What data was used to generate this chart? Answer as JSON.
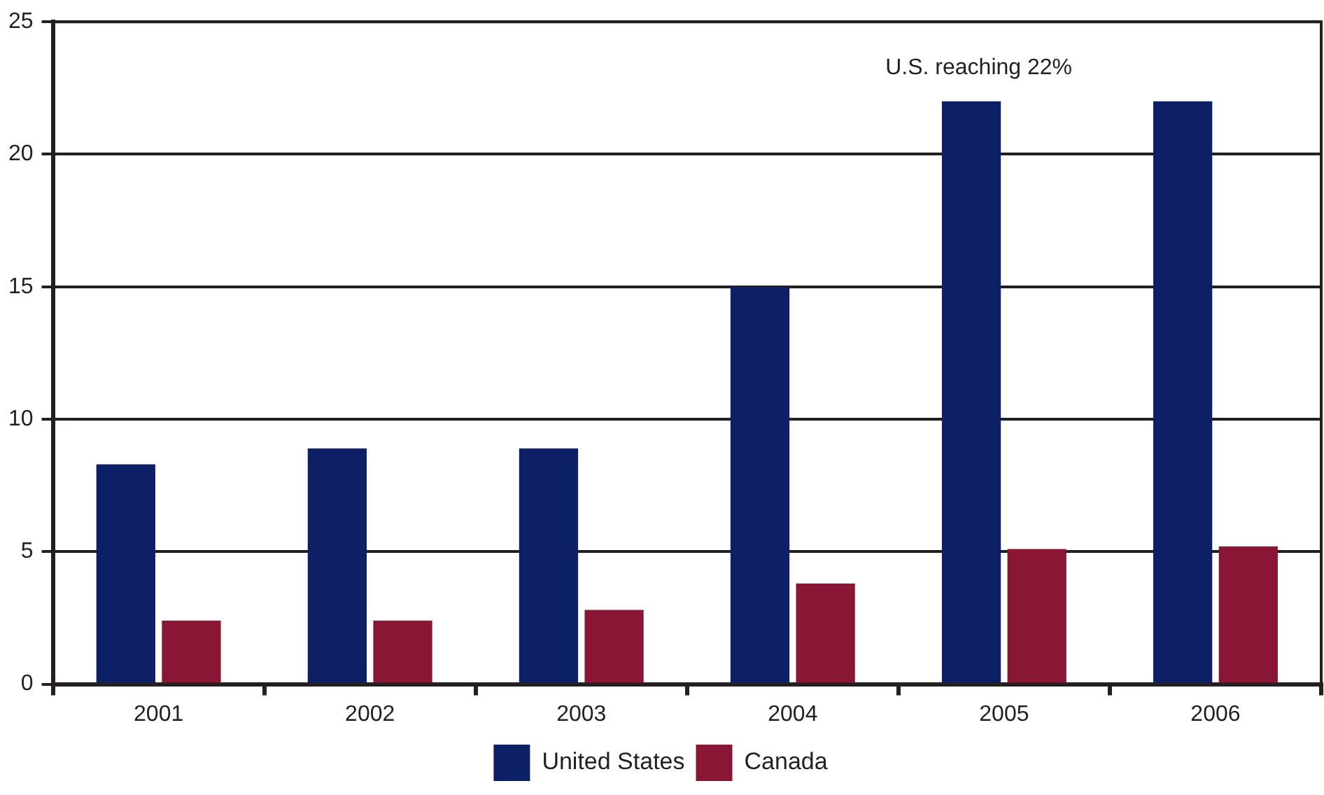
{
  "chart_data": {
    "type": "bar",
    "categories": [
      "2001",
      "2002",
      "2003",
      "2004",
      "2005",
      "2006"
    ],
    "series": [
      {
        "name": "United States",
        "color": "#0d2066",
        "values": [
          8.3,
          8.9,
          8.9,
          15,
          22,
          22
        ]
      },
      {
        "name": "Canada",
        "color": "#881634",
        "values": [
          2.4,
          2.4,
          2.8,
          3.8,
          5.1,
          5.2
        ]
      }
    ],
    "ylim": [
      0,
      25
    ],
    "yticks": [
      0,
      5,
      10,
      15,
      20,
      25
    ],
    "grid": "y",
    "legend": "bottom",
    "annotations": [
      "U.S. reaching 22%"
    ]
  }
}
